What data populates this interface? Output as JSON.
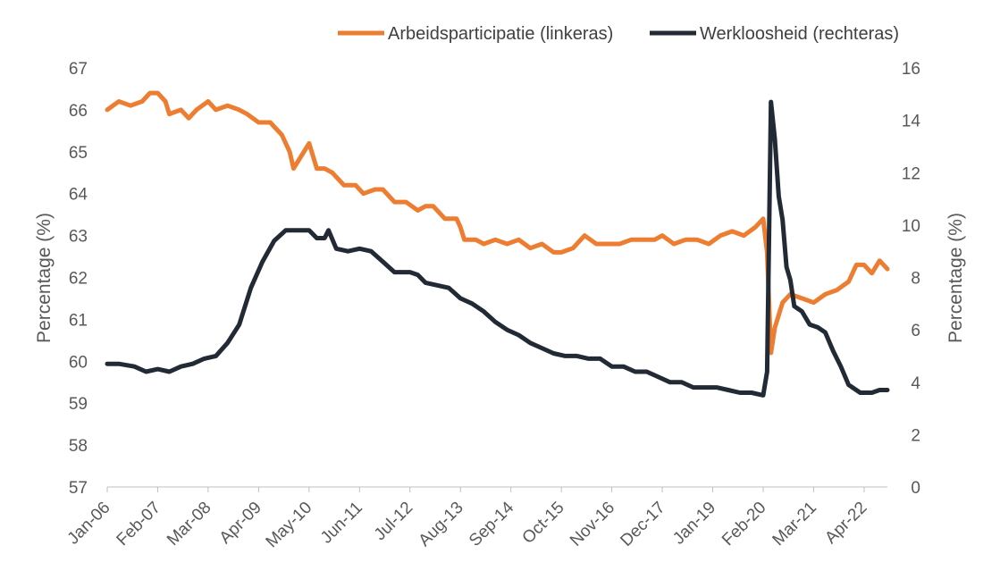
{
  "chart_data": {
    "type": "line",
    "legend_position": "top-right",
    "grid": false,
    "x_tick_labels": [
      "Jan-06",
      "Feb-07",
      "Mar-08",
      "Apr-09",
      "May-10",
      "Jun-11",
      "Jul-12",
      "Aug-13",
      "Sep-14",
      "Oct-15",
      "Nov-16",
      "Dec-17",
      "Jan-19",
      "Feb-20",
      "Mar-21",
      "Apr-22"
    ],
    "x_range": [
      "2006-01",
      "2022-10"
    ],
    "y_left": {
      "label": "Percentage (%)",
      "range": [
        57,
        67
      ],
      "ticks": [
        "57",
        "58",
        "59",
        "60",
        "61",
        "62",
        "63",
        "64",
        "65",
        "66",
        "67"
      ]
    },
    "y_right": {
      "label": "Percentage (%)",
      "range": [
        0,
        16
      ],
      "ticks": [
        "0",
        "2",
        "4",
        "6",
        "8",
        "10",
        "12",
        "14",
        "16"
      ]
    },
    "series": [
      {
        "name": "Arbeidsparticipatie (linkeras)",
        "axis": "left",
        "color": "#ED7D31",
        "points": [
          [
            "2006-01",
            66.0
          ],
          [
            "2006-04",
            66.2
          ],
          [
            "2006-07",
            66.1
          ],
          [
            "2006-10",
            66.2
          ],
          [
            "2006-12",
            66.4
          ],
          [
            "2007-02",
            66.4
          ],
          [
            "2007-04",
            66.2
          ],
          [
            "2007-05",
            65.9
          ],
          [
            "2007-08",
            66.0
          ],
          [
            "2007-10",
            65.8
          ],
          [
            "2007-12",
            66.0
          ],
          [
            "2008-03",
            66.2
          ],
          [
            "2008-05",
            66.0
          ],
          [
            "2008-08",
            66.1
          ],
          [
            "2008-11",
            66.0
          ],
          [
            "2009-01",
            65.9
          ],
          [
            "2009-04",
            65.7
          ],
          [
            "2009-07",
            65.7
          ],
          [
            "2009-10",
            65.4
          ],
          [
            "2009-12",
            65.0
          ],
          [
            "2010-01",
            64.6
          ],
          [
            "2010-03",
            64.9
          ],
          [
            "2010-05",
            65.2
          ],
          [
            "2010-07",
            64.6
          ],
          [
            "2010-09",
            64.6
          ],
          [
            "2010-11",
            64.5
          ],
          [
            "2011-02",
            64.2
          ],
          [
            "2011-05",
            64.2
          ],
          [
            "2011-07",
            64.0
          ],
          [
            "2011-10",
            64.1
          ],
          [
            "2011-12",
            64.1
          ],
          [
            "2012-03",
            63.8
          ],
          [
            "2012-06",
            63.8
          ],
          [
            "2012-09",
            63.6
          ],
          [
            "2012-11",
            63.7
          ],
          [
            "2013-01",
            63.7
          ],
          [
            "2013-04",
            63.4
          ],
          [
            "2013-07",
            63.4
          ],
          [
            "2013-08",
            63.2
          ],
          [
            "2013-09",
            62.9
          ],
          [
            "2013-12",
            62.9
          ],
          [
            "2014-02",
            62.8
          ],
          [
            "2014-05",
            62.9
          ],
          [
            "2014-08",
            62.8
          ],
          [
            "2014-11",
            62.9
          ],
          [
            "2015-02",
            62.7
          ],
          [
            "2015-05",
            62.8
          ],
          [
            "2015-08",
            62.6
          ],
          [
            "2015-10",
            62.6
          ],
          [
            "2016-01",
            62.7
          ],
          [
            "2016-04",
            63.0
          ],
          [
            "2016-07",
            62.8
          ],
          [
            "2016-10",
            62.8
          ],
          [
            "2017-01",
            62.8
          ],
          [
            "2017-04",
            62.9
          ],
          [
            "2017-07",
            62.9
          ],
          [
            "2017-10",
            62.9
          ],
          [
            "2017-12",
            63.0
          ],
          [
            "2018-03",
            62.8
          ],
          [
            "2018-06",
            62.9
          ],
          [
            "2018-09",
            62.9
          ],
          [
            "2018-12",
            62.8
          ],
          [
            "2019-03",
            63.0
          ],
          [
            "2019-06",
            63.1
          ],
          [
            "2019-09",
            63.0
          ],
          [
            "2019-12",
            63.2
          ],
          [
            "2020-02",
            63.4
          ],
          [
            "2020-03",
            62.6
          ],
          [
            "2020-04",
            60.2
          ],
          [
            "2020-05",
            60.8
          ],
          [
            "2020-07",
            61.4
          ],
          [
            "2020-09",
            61.6
          ],
          [
            "2020-12",
            61.5
          ],
          [
            "2021-03",
            61.4
          ],
          [
            "2021-06",
            61.6
          ],
          [
            "2021-09",
            61.7
          ],
          [
            "2021-12",
            61.9
          ],
          [
            "2022-02",
            62.3
          ],
          [
            "2022-04",
            62.3
          ],
          [
            "2022-06",
            62.1
          ],
          [
            "2022-08",
            62.4
          ],
          [
            "2022-10",
            62.2
          ]
        ]
      },
      {
        "name": "Werkloosheid (rechteras)",
        "axis": "right",
        "color": "#222A35",
        "points": [
          [
            "2006-01",
            4.7
          ],
          [
            "2006-04",
            4.7
          ],
          [
            "2006-08",
            4.6
          ],
          [
            "2006-11",
            4.4
          ],
          [
            "2007-02",
            4.5
          ],
          [
            "2007-05",
            4.4
          ],
          [
            "2007-08",
            4.6
          ],
          [
            "2007-11",
            4.7
          ],
          [
            "2008-02",
            4.9
          ],
          [
            "2008-05",
            5.0
          ],
          [
            "2008-08",
            5.5
          ],
          [
            "2008-11",
            6.2
          ],
          [
            "2009-02",
            7.6
          ],
          [
            "2009-05",
            8.6
          ],
          [
            "2009-08",
            9.4
          ],
          [
            "2009-11",
            9.8
          ],
          [
            "2010-02",
            9.8
          ],
          [
            "2010-05",
            9.8
          ],
          [
            "2010-07",
            9.5
          ],
          [
            "2010-09",
            9.5
          ],
          [
            "2010-10",
            9.8
          ],
          [
            "2010-12",
            9.1
          ],
          [
            "2011-03",
            9.0
          ],
          [
            "2011-06",
            9.1
          ],
          [
            "2011-09",
            9.0
          ],
          [
            "2011-12",
            8.6
          ],
          [
            "2012-03",
            8.2
          ],
          [
            "2012-07",
            8.2
          ],
          [
            "2012-09",
            8.1
          ],
          [
            "2012-11",
            7.8
          ],
          [
            "2013-02",
            7.7
          ],
          [
            "2013-05",
            7.6
          ],
          [
            "2013-08",
            7.2
          ],
          [
            "2013-11",
            7.0
          ],
          [
            "2014-02",
            6.7
          ],
          [
            "2014-05",
            6.3
          ],
          [
            "2014-08",
            6.0
          ],
          [
            "2014-11",
            5.8
          ],
          [
            "2015-02",
            5.5
          ],
          [
            "2015-05",
            5.3
          ],
          [
            "2015-08",
            5.1
          ],
          [
            "2015-11",
            5.0
          ],
          [
            "2016-02",
            5.0
          ],
          [
            "2016-05",
            4.9
          ],
          [
            "2016-08",
            4.9
          ],
          [
            "2016-11",
            4.6
          ],
          [
            "2017-02",
            4.6
          ],
          [
            "2017-05",
            4.4
          ],
          [
            "2017-08",
            4.4
          ],
          [
            "2017-11",
            4.2
          ],
          [
            "2018-02",
            4.0
          ],
          [
            "2018-05",
            4.0
          ],
          [
            "2018-08",
            3.8
          ],
          [
            "2018-11",
            3.8
          ],
          [
            "2019-02",
            3.8
          ],
          [
            "2019-05",
            3.7
          ],
          [
            "2019-08",
            3.6
          ],
          [
            "2019-11",
            3.6
          ],
          [
            "2020-02",
            3.5
          ],
          [
            "2020-03",
            4.4
          ],
          [
            "2020-04",
            14.7
          ],
          [
            "2020-05",
            13.3
          ],
          [
            "2020-06",
            11.1
          ],
          [
            "2020-07",
            10.2
          ],
          [
            "2020-08",
            8.4
          ],
          [
            "2020-09",
            7.9
          ],
          [
            "2020-10",
            6.9
          ],
          [
            "2020-12",
            6.7
          ],
          [
            "2021-02",
            6.2
          ],
          [
            "2021-04",
            6.1
          ],
          [
            "2021-06",
            5.9
          ],
          [
            "2021-08",
            5.2
          ],
          [
            "2021-10",
            4.6
          ],
          [
            "2021-12",
            3.9
          ],
          [
            "2022-03",
            3.6
          ],
          [
            "2022-06",
            3.6
          ],
          [
            "2022-08",
            3.7
          ],
          [
            "2022-10",
            3.7
          ]
        ]
      }
    ]
  }
}
